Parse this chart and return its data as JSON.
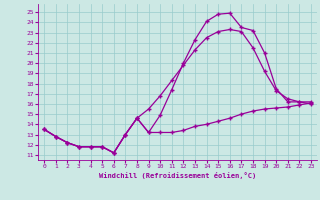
{
  "xlabel": "Windchill (Refroidissement éolien,°C)",
  "bg_color": "#cce8e4",
  "grid_color": "#99cccc",
  "line_color": "#990099",
  "xlim": [
    -0.5,
    23.5
  ],
  "ylim": [
    10.5,
    25.8
  ],
  "yticks": [
    11,
    12,
    13,
    14,
    15,
    16,
    17,
    18,
    19,
    20,
    21,
    22,
    23,
    24,
    25
  ],
  "xticks": [
    0,
    1,
    2,
    3,
    4,
    5,
    6,
    7,
    8,
    9,
    10,
    11,
    12,
    13,
    14,
    15,
    16,
    17,
    18,
    19,
    20,
    21,
    22,
    23
  ],
  "line1_x": [
    0,
    1,
    2,
    3,
    4,
    5,
    6,
    7,
    8,
    9,
    10,
    11,
    12,
    13,
    14,
    15,
    16,
    17,
    18,
    19,
    20,
    21,
    22,
    23
  ],
  "line1_y": [
    13.5,
    12.8,
    12.2,
    11.8,
    11.8,
    11.8,
    11.2,
    13.0,
    14.6,
    13.2,
    13.2,
    13.2,
    13.4,
    13.8,
    14.0,
    14.3,
    14.6,
    15.0,
    15.3,
    15.5,
    15.6,
    15.7,
    15.9,
    16.1
  ],
  "line2_x": [
    0,
    1,
    2,
    3,
    4,
    5,
    6,
    7,
    8,
    9,
    10,
    11,
    12,
    13,
    14,
    15,
    16,
    17,
    18,
    19,
    20,
    21,
    22,
    23
  ],
  "line2_y": [
    13.5,
    12.8,
    12.2,
    11.8,
    11.8,
    11.8,
    11.2,
    13.0,
    14.6,
    13.2,
    14.9,
    17.4,
    20.0,
    22.3,
    24.1,
    24.8,
    24.9,
    23.5,
    23.2,
    21.0,
    17.5,
    16.2,
    16.2,
    16.2
  ],
  "line3_x": [
    0,
    1,
    2,
    3,
    4,
    5,
    6,
    7,
    8,
    9,
    10,
    11,
    12,
    13,
    14,
    15,
    16,
    17,
    18,
    19,
    20,
    21,
    22,
    23
  ],
  "line3_y": [
    13.5,
    12.8,
    12.2,
    11.8,
    11.8,
    11.8,
    11.2,
    13.0,
    14.6,
    15.5,
    16.8,
    18.3,
    19.8,
    21.3,
    22.5,
    23.1,
    23.3,
    23.1,
    21.5,
    19.2,
    17.3,
    16.5,
    16.2,
    16.0
  ]
}
